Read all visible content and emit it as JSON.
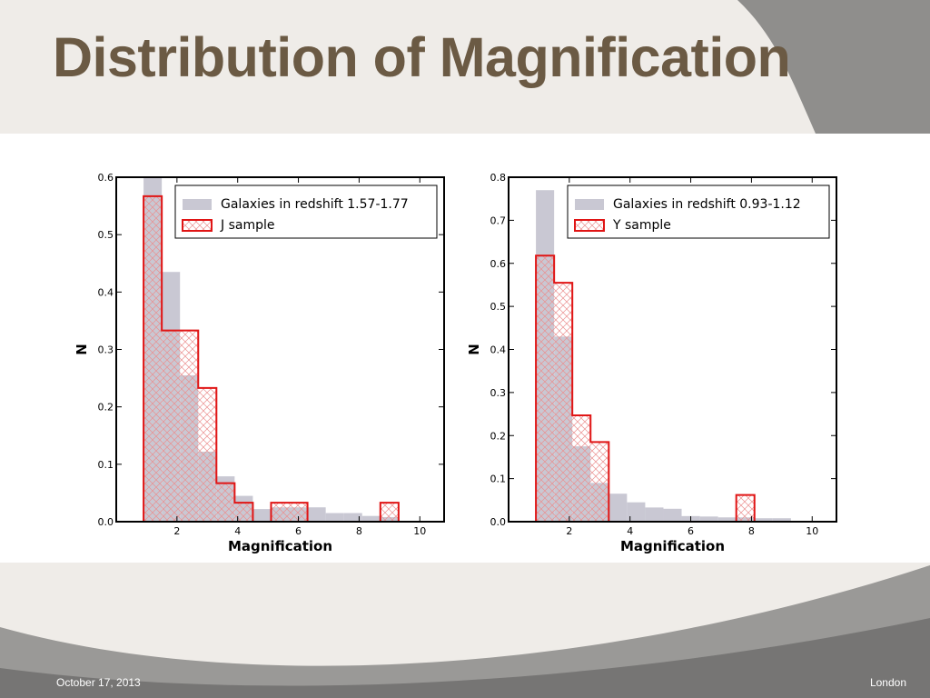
{
  "slide": {
    "title": "Distribution of Magnification",
    "footer_date": "October 17, 2013",
    "footer_location": "London"
  },
  "colors": {
    "galaxies_fill": "#c9c8d3",
    "sample_line": "#e01515",
    "hatch": "#ea8f8f",
    "title": "#6b5a44"
  },
  "chart_data": [
    {
      "type": "histogram",
      "xlabel": "Magnification",
      "ylabel": "N",
      "xlim": [
        0,
        10.8
      ],
      "ylim": [
        0,
        0.6
      ],
      "xticks": [
        2,
        4,
        6,
        8,
        10
      ],
      "yticks": [
        0.0,
        0.1,
        0.2,
        0.3,
        0.4,
        0.5,
        0.6
      ],
      "legend_position": "top-right",
      "series": [
        {
          "name": "Galaxies in redshift 1.57-1.77",
          "style": "filled",
          "bin_edges": [
            0.9,
            1.5,
            2.1,
            2.7,
            3.3,
            3.9,
            4.5,
            5.1,
            5.7,
            6.3,
            6.9,
            7.5,
            8.1,
            8.7,
            9.3
          ],
          "values": [
            0.6,
            0.435,
            0.255,
            0.122,
            0.079,
            0.045,
            0.022,
            0.025,
            0.025,
            0.025,
            0.015,
            0.015,
            0.01,
            0.008
          ]
        },
        {
          "name": "J sample",
          "style": "step-hatched",
          "bin_edges": [
            0.9,
            1.5,
            2.1,
            2.7,
            3.3,
            3.9,
            4.5,
            5.1,
            5.7,
            6.3,
            6.9,
            7.5,
            8.1,
            8.7,
            9.3
          ],
          "values": [
            0.567,
            0.333,
            0.333,
            0.233,
            0.067,
            0.033,
            0.0,
            0.033,
            0.033,
            0.0,
            0.0,
            0.0,
            0.0,
            0.033
          ]
        }
      ]
    },
    {
      "type": "histogram",
      "xlabel": "Magnification",
      "ylabel": "N",
      "xlim": [
        0,
        10.8
      ],
      "ylim": [
        0,
        0.8
      ],
      "xticks": [
        2,
        4,
        6,
        8,
        10
      ],
      "yticks": [
        0.0,
        0.1,
        0.2,
        0.3,
        0.4,
        0.5,
        0.6,
        0.7,
        0.8
      ],
      "legend_position": "top-right",
      "series": [
        {
          "name": "Galaxies in redshift 0.93-1.12",
          "style": "filled",
          "bin_edges": [
            0.9,
            1.5,
            2.1,
            2.7,
            3.3,
            3.9,
            4.5,
            5.1,
            5.7,
            6.3,
            6.9,
            7.5,
            8.1,
            8.7,
            9.3
          ],
          "values": [
            0.77,
            0.43,
            0.175,
            0.09,
            0.065,
            0.045,
            0.033,
            0.03,
            0.013,
            0.012,
            0.01,
            0.01,
            0.008,
            0.008
          ]
        },
        {
          "name": "Y sample",
          "style": "step-hatched",
          "bin_edges": [
            0.9,
            1.5,
            2.1,
            2.7,
            3.3,
            3.9,
            4.5,
            5.1,
            5.7,
            6.3,
            6.9,
            7.5,
            8.1,
            8.7,
            9.3
          ],
          "values": [
            0.618,
            0.555,
            0.247,
            0.185,
            0.0,
            0.0,
            0.0,
            0.0,
            0.0,
            0.0,
            0.0,
            0.062,
            0.0,
            0.0
          ]
        }
      ]
    }
  ]
}
